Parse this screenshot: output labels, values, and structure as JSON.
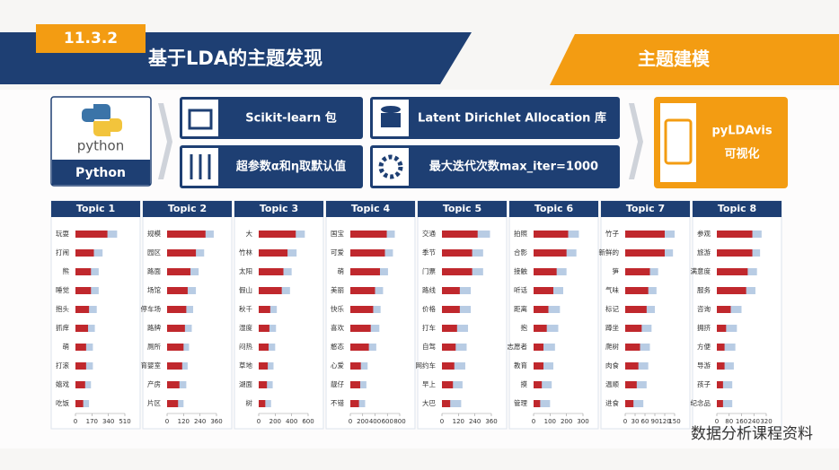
{
  "header": {
    "section": "11.3.2",
    "title": "基于LDA的主题发现",
    "tag": "主题建模"
  },
  "boxes": {
    "python_logo": "python",
    "python": "Python",
    "sklearn": "Scikit-learn 包",
    "params": "超参数α和η取默认值",
    "lda": "Latent Dirichlet Allocation 库",
    "iter": "最大迭代次数max_iter=1000",
    "vis_1": "pyLDAvis",
    "vis_2": "可视化"
  },
  "watermark": "数据分析课程资料",
  "chart_data": [
    {
      "type": "barh",
      "title": "Topic 1",
      "categories": [
        "玩耍",
        "打闹",
        "熊",
        "睡觉",
        "抱头",
        "抓痒",
        "萌",
        "打滚",
        "嬉戏",
        "吃饭"
      ],
      "series": [
        {
          "color": "#b8cce4",
          "values": [
            430,
            280,
            240,
            240,
            220,
            200,
            180,
            180,
            160,
            140
          ]
        },
        {
          "color": "#c0282d",
          "values": [
            330,
            190,
            160,
            160,
            140,
            130,
            110,
            110,
            100,
            80
          ]
        }
      ],
      "xlim": [
        0,
        510
      ],
      "xticks": [
        0,
        170,
        340,
        510
      ]
    },
    {
      "type": "barh",
      "title": "Topic 2",
      "categories": [
        "规模",
        "园区",
        "路面",
        "场馆",
        "停车场",
        "路牌",
        "厕所",
        "育婴室",
        "产房",
        "片区"
      ],
      "series": [
        {
          "color": "#b8cce4",
          "values": [
            340,
            270,
            230,
            210,
            190,
            180,
            160,
            150,
            140,
            120
          ]
        },
        {
          "color": "#c0282d",
          "values": [
            280,
            210,
            170,
            150,
            140,
            130,
            120,
            110,
            90,
            80
          ]
        }
      ],
      "xlim": [
        0,
        360
      ],
      "xticks": [
        0,
        120,
        240,
        360
      ]
    },
    {
      "type": "barh",
      "title": "Topic 3",
      "categories": [
        "大",
        "竹林",
        "太阳",
        "假山",
        "秋千",
        "湿度",
        "闷热",
        "草地",
        "湖面",
        "树"
      ],
      "series": [
        {
          "color": "#b8cce4",
          "values": [
            560,
            460,
            400,
            380,
            220,
            210,
            200,
            180,
            170,
            150
          ]
        },
        {
          "color": "#c0282d",
          "values": [
            450,
            350,
            300,
            280,
            140,
            130,
            120,
            110,
            100,
            80
          ]
        }
      ],
      "xlim": [
        0,
        600
      ],
      "xticks": [
        0,
        200,
        400,
        600
      ]
    },
    {
      "type": "barh",
      "title": "Topic 4",
      "categories": [
        "国宝",
        "可爱",
        "萌",
        "美丽",
        "快乐",
        "喜欢",
        "憨态",
        "心爱",
        "靓仔",
        "不错"
      ],
      "series": [
        {
          "color": "#b8cce4",
          "values": [
            720,
            690,
            610,
            530,
            490,
            470,
            420,
            280,
            260,
            240
          ]
        },
        {
          "color": "#c0282d",
          "values": [
            590,
            560,
            480,
            400,
            370,
            330,
            300,
            170,
            160,
            140
          ]
        }
      ],
      "xlim": [
        0,
        800
      ],
      "xticks": [
        0,
        200,
        400,
        600,
        800
      ]
    },
    {
      "type": "barh",
      "title": "Topic 5",
      "categories": [
        "交通",
        "季节",
        "门票",
        "路线",
        "价格",
        "打车",
        "自驾",
        "网约车",
        "早上",
        "大巴"
      ],
      "series": [
        {
          "color": "#b8cce4",
          "values": [
            350,
            300,
            300,
            210,
            210,
            190,
            180,
            170,
            150,
            140
          ]
        },
        {
          "color": "#c0282d",
          "values": [
            260,
            220,
            220,
            130,
            130,
            110,
            100,
            90,
            80,
            60
          ]
        }
      ],
      "xlim": [
        0,
        360
      ],
      "xticks": [
        0,
        120,
        240,
        360
      ]
    },
    {
      "type": "barh",
      "title": "Topic 6",
      "categories": [
        "拍照",
        "合影",
        "接触",
        "听话",
        "距离",
        "抱",
        "志愿者",
        "教育",
        "摸",
        "管理"
      ],
      "series": [
        {
          "color": "#b8cce4",
          "values": [
            275,
            260,
            200,
            180,
            160,
            150,
            130,
            120,
            110,
            100
          ]
        },
        {
          "color": "#c0282d",
          "values": [
            210,
            200,
            140,
            120,
            90,
            80,
            60,
            60,
            50,
            40
          ]
        }
      ],
      "xlim": [
        0,
        300
      ],
      "xticks": [
        0,
        100,
        200,
        300
      ]
    },
    {
      "type": "barh",
      "title": "Topic 7",
      "categories": [
        "竹子",
        "新鲜的",
        "笋",
        "气味",
        "标记",
        "蹲坐",
        "爬树",
        "肉食",
        "温顺",
        "进食"
      ],
      "series": [
        {
          "color": "#b8cce4",
          "values": [
            150,
            145,
            100,
            95,
            90,
            80,
            75,
            70,
            65,
            55
          ]
        },
        {
          "color": "#c0282d",
          "values": [
            120,
            120,
            75,
            70,
            65,
            50,
            45,
            40,
            35,
            25
          ]
        }
      ],
      "xlim": [
        0,
        150
      ],
      "xticks": [
        0,
        30,
        60,
        90,
        120,
        150
      ]
    },
    {
      "type": "barh",
      "title": "Topic 8",
      "categories": [
        "参观",
        "旅游",
        "满意度",
        "服务",
        "咨询",
        "拥挤",
        "方便",
        "导游",
        "孩子",
        "纪念品"
      ],
      "series": [
        {
          "color": "#b8cce4",
          "values": [
            290,
            280,
            260,
            250,
            160,
            130,
            120,
            110,
            100,
            100
          ]
        },
        {
          "color": "#c0282d",
          "values": [
            230,
            230,
            200,
            190,
            90,
            60,
            50,
            50,
            40,
            40
          ]
        }
      ],
      "xlim": [
        0,
        320
      ],
      "xticks": [
        0,
        80,
        160,
        240,
        320
      ]
    }
  ]
}
